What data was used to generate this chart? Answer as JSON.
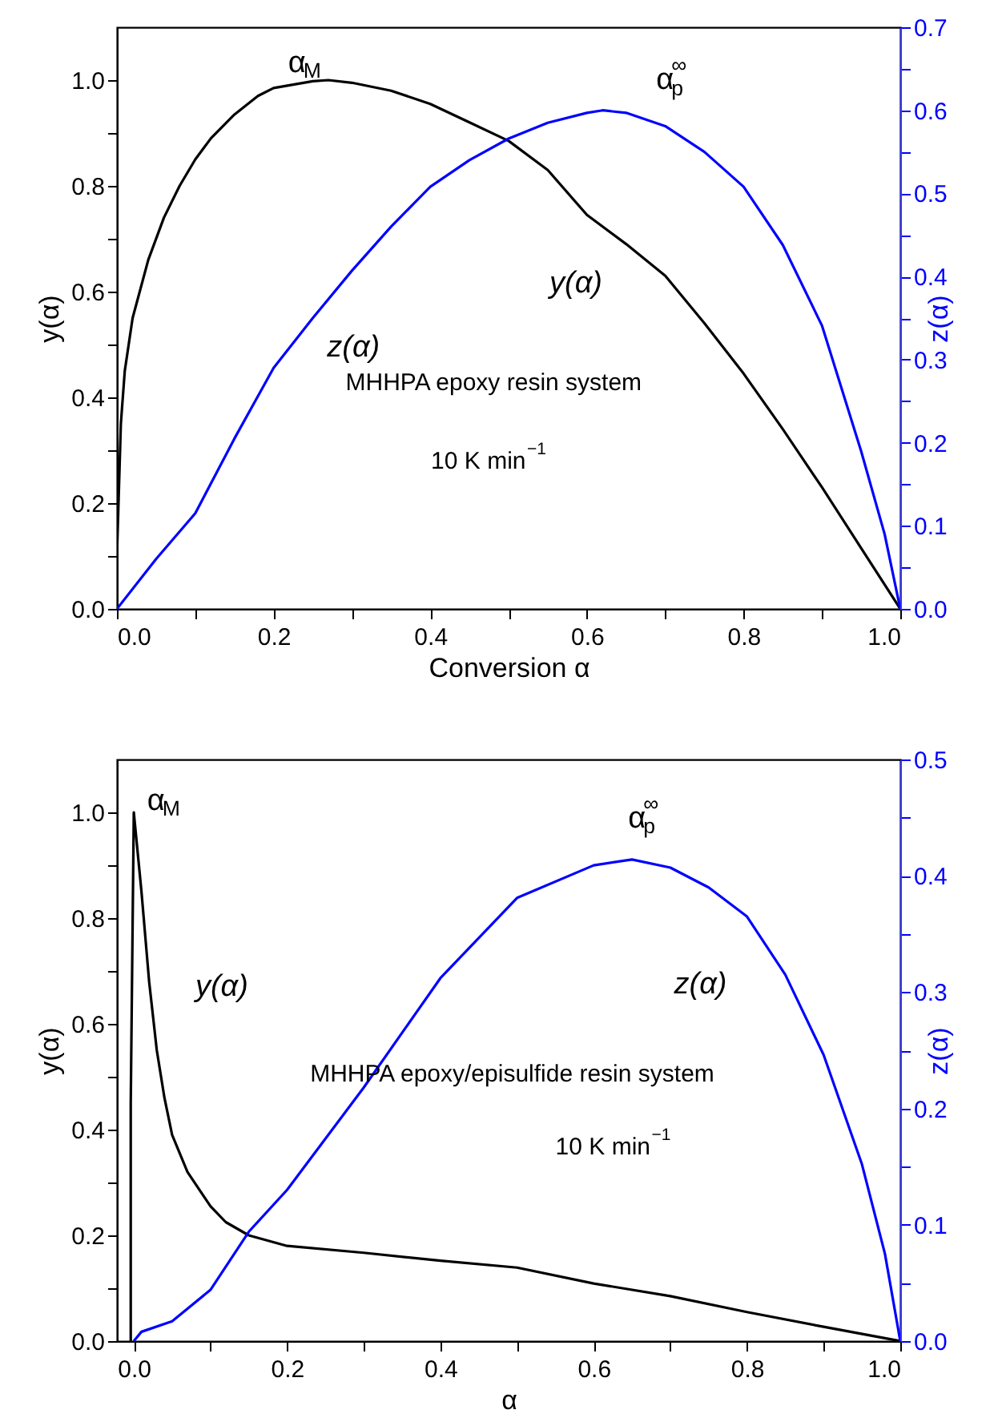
{
  "chart_data": [
    {
      "type": "line",
      "xlabel": "Conversion α",
      "ylabel": "y(α)",
      "y2label": "z(α)",
      "xlim": [
        0,
        1
      ],
      "ylim": [
        0,
        1.1
      ],
      "y2lim": [
        0,
        0.7
      ],
      "xticks": [
        {
          "value": 0,
          "label": "0.0"
        },
        {
          "value": 0.1,
          "label": null
        },
        {
          "value": 0.2,
          "label": "0.2"
        },
        {
          "value": 0.3,
          "label": null
        },
        {
          "value": 0.4,
          "label": "0.4"
        },
        {
          "value": 0.5,
          "label": null
        },
        {
          "value": 0.6,
          "label": "0.6"
        },
        {
          "value": 0.7,
          "label": null
        },
        {
          "value": 0.8,
          "label": "0.8"
        },
        {
          "value": 0.9,
          "label": null
        },
        {
          "value": 1,
          "label": "1.0"
        }
      ],
      "yticks": [
        {
          "value": 0,
          "label": "0.0"
        },
        {
          "value": 0.1,
          "label": null
        },
        {
          "value": 0.2,
          "label": "0.2"
        },
        {
          "value": 0.3,
          "label": null
        },
        {
          "value": 0.4,
          "label": "0.4"
        },
        {
          "value": 0.5,
          "label": null
        },
        {
          "value": 0.6,
          "label": "0.6"
        },
        {
          "value": 0.7,
          "label": null
        },
        {
          "value": 0.8,
          "label": "0.8"
        },
        {
          "value": 0.9,
          "label": null
        },
        {
          "value": 1,
          "label": "1.0"
        }
      ],
      "y2ticks": [
        {
          "value": 0,
          "label": "0.0"
        },
        {
          "value": 0.05,
          "label": null
        },
        {
          "value": 0.1,
          "label": "0.1"
        },
        {
          "value": 0.15,
          "label": null
        },
        {
          "value": 0.2,
          "label": "0.2"
        },
        {
          "value": 0.25,
          "label": null
        },
        {
          "value": 0.3,
          "label": "0.3"
        },
        {
          "value": 0.35,
          "label": null
        },
        {
          "value": 0.4,
          "label": "0.4"
        },
        {
          "value": 0.45,
          "label": null
        },
        {
          "value": 0.5,
          "label": "0.5"
        },
        {
          "value": 0.55,
          "label": null
        },
        {
          "value": 0.6,
          "label": "0.6"
        },
        {
          "value": 0.65,
          "label": null
        },
        {
          "value": 0.7,
          "label": "0.7"
        }
      ],
      "series": [
        {
          "name": "y(α)",
          "color": "#000000",
          "x": [
            0,
            0.005,
            0.01,
            0.02,
            0.04,
            0.06,
            0.08,
            0.1,
            0.12,
            0.15,
            0.18,
            0.2,
            0.25,
            0.27,
            0.3,
            0.35,
            0.4,
            0.45,
            0.5,
            0.55,
            0.6,
            0.65,
            0.7,
            0.75,
            0.8,
            0.85,
            0.9,
            0.95,
            1
          ],
          "values": [
            0.1,
            0.35,
            0.45,
            0.55,
            0.66,
            0.74,
            0.8,
            0.85,
            0.89,
            0.935,
            0.97,
            0.985,
            0.998,
            1,
            0.995,
            0.98,
            0.955,
            0.92,
            0.885,
            0.83,
            0.745,
            0.69,
            0.63,
            0.54,
            0.445,
            0.34,
            0.23,
            0.115,
            0
          ]
        },
        {
          "name": "z(α)",
          "color": "#0000ff",
          "axis": "y2",
          "x": [
            0,
            0.05,
            0.1,
            0.15,
            0.2,
            0.25,
            0.3,
            0.35,
            0.4,
            0.45,
            0.5,
            0.55,
            0.6,
            0.62,
            0.65,
            0.7,
            0.75,
            0.8,
            0.85,
            0.9,
            0.95,
            0.98,
            1
          ],
          "values": [
            0,
            0.06,
            0.115,
            0.205,
            0.29,
            0.35,
            0.407,
            0.46,
            0.508,
            0.54,
            0.566,
            0.585,
            0.597,
            0.6,
            0.597,
            0.581,
            0.55,
            0.508,
            0.438,
            0.341,
            0.19,
            0.09,
            0
          ]
        }
      ],
      "annotations": [
        "α$_{M}$",
        "α$_{p}$$^{∞}$",
        "MHHPA epoxy resin system",
        "10 K min$^{−1}$"
      ]
    },
    {
      "type": "line",
      "xlabel": "α",
      "ylabel": "y(α)",
      "y2label": "z(α)",
      "xlim": [
        -0.022,
        1
      ],
      "ylim": [
        0,
        1.1
      ],
      "y2lim": [
        0,
        0.5
      ],
      "xticks": [
        {
          "value": 0,
          "label": "0.0"
        },
        {
          "value": 0.1,
          "label": null
        },
        {
          "value": 0.2,
          "label": "0.2"
        },
        {
          "value": 0.3,
          "label": null
        },
        {
          "value": 0.4,
          "label": "0.4"
        },
        {
          "value": 0.5,
          "label": null
        },
        {
          "value": 0.6,
          "label": "0.6"
        },
        {
          "value": 0.7,
          "label": null
        },
        {
          "value": 0.8,
          "label": "0.8"
        },
        {
          "value": 0.9,
          "label": null
        },
        {
          "value": 1,
          "label": "1.0"
        }
      ],
      "yticks": [
        {
          "value": 0,
          "label": "0.0"
        },
        {
          "value": 0.1,
          "label": null
        },
        {
          "value": 0.2,
          "label": "0.2"
        },
        {
          "value": 0.3,
          "label": null
        },
        {
          "value": 0.4,
          "label": "0.4"
        },
        {
          "value": 0.5,
          "label": null
        },
        {
          "value": 0.6,
          "label": "0.6"
        },
        {
          "value": 0.7,
          "label": null
        },
        {
          "value": 0.8,
          "label": "0.8"
        },
        {
          "value": 0.9,
          "label": null
        },
        {
          "value": 1,
          "label": "1.0"
        }
      ],
      "y2ticks": [
        {
          "value": 0,
          "label": "0.0"
        },
        {
          "value": 0.05,
          "label": null
        },
        {
          "value": 0.1,
          "label": "0.1"
        },
        {
          "value": 0.15,
          "label": null
        },
        {
          "value": 0.2,
          "label": "0.2"
        },
        {
          "value": 0.25,
          "label": null
        },
        {
          "value": 0.3,
          "label": "0.3"
        },
        {
          "value": 0.35,
          "label": null
        },
        {
          "value": 0.4,
          "label": "0.4"
        },
        {
          "value": 0.45,
          "label": null
        },
        {
          "value": 0.5,
          "label": "0.5"
        }
      ],
      "series": [
        {
          "name": "y(α)",
          "color": "#000000",
          "x": [
            -0.004,
            -0.004,
            0,
            0.01,
            0.02,
            0.03,
            0.04,
            0.05,
            0.07,
            0.1,
            0.12,
            0.15,
            0.2,
            0.3,
            0.4,
            0.5,
            0.6,
            0.7,
            0.8,
            0.9,
            1
          ],
          "values": [
            0,
            0.45,
            1,
            0.85,
            0.68,
            0.55,
            0.46,
            0.39,
            0.32,
            0.255,
            0.225,
            0.2,
            0.18,
            0.167,
            0.152,
            0.139,
            0.109,
            0.085,
            0.055,
            0.027,
            0
          ]
        },
        {
          "name": "z(α)",
          "color": "#0000ff",
          "axis": "y2",
          "x": [
            0,
            0.01,
            0.05,
            0.1,
            0.15,
            0.2,
            0.3,
            0.4,
            0.5,
            0.6,
            0.65,
            0.7,
            0.75,
            0.8,
            0.85,
            0.9,
            0.95,
            0.98,
            1
          ],
          "values": [
            0,
            0.008,
            0.017,
            0.044,
            0.094,
            0.13,
            0.218,
            0.312,
            0.381,
            0.409,
            0.414,
            0.407,
            0.39,
            0.365,
            0.315,
            0.246,
            0.152,
            0.075,
            0
          ]
        }
      ],
      "annotations": [
        "α$_{M}$",
        "α$_{p}$$^{∞}$",
        "MHHPA epoxy/episulfide resin system",
        "10 K min$^{−1}$"
      ]
    }
  ]
}
